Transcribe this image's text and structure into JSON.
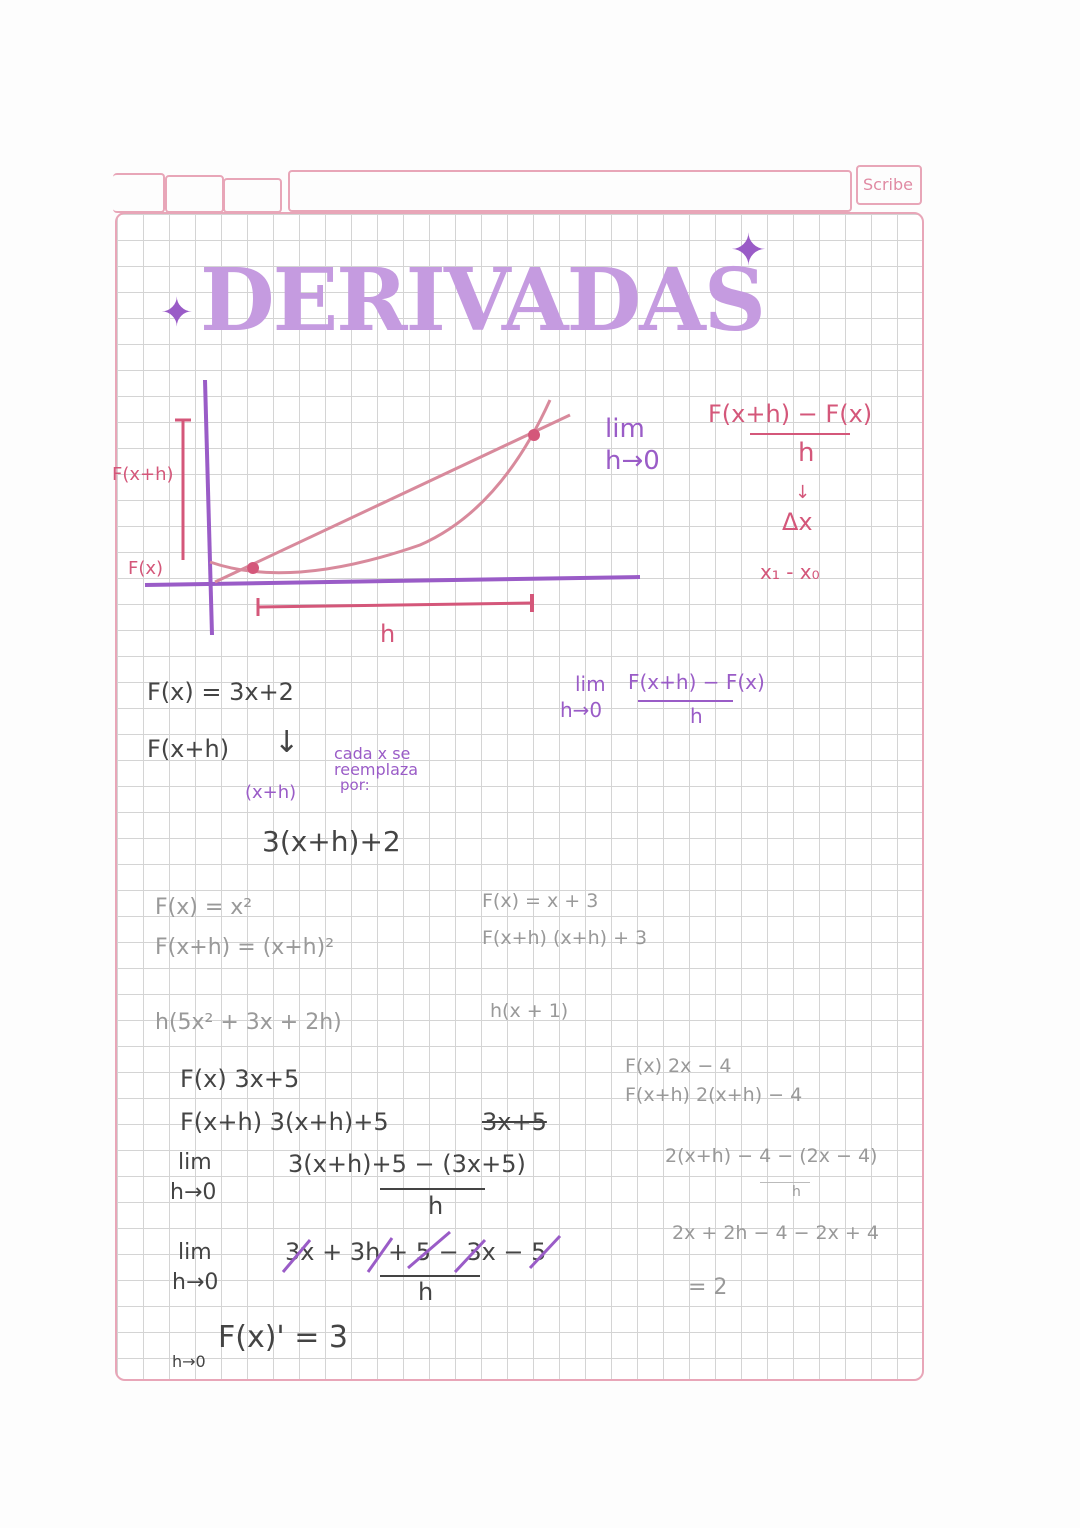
{
  "header": {
    "brand": "Scribe"
  },
  "title": "DERIVADAS",
  "graph": {
    "label_fxh": "F(x+h)",
    "label_fx": "F(x)",
    "label_h": "h"
  },
  "definition": {
    "lim": "lim",
    "h_to_0": "h→0",
    "numerator": "F(x+h) − F(x)",
    "denominator": "h",
    "delta": "Δx",
    "difference": "x₁ - x₀"
  },
  "example1": {
    "f": "F(x) = 3x+2",
    "fxh": "F(x+h)",
    "note_line1": "cada  x  se",
    "note_line2": "reemplaza",
    "note_line3": "por:",
    "xh": "(x+h)",
    "result": "3(x+h)+2"
  },
  "definition2": {
    "lim": "lim",
    "h_to_0": "h→0",
    "numerator": "F(x+h) − F(x)",
    "denominator": "h"
  },
  "example2": {
    "f": "F(x) = x²",
    "fxh": "F(x+h) = (x+h)²",
    "work": "h(5x² + 3x + 2h)"
  },
  "example3": {
    "f": "F(x) = x + 3",
    "fxh": "F(x+h)  (x+h) + 3",
    "work": "h(x + 1)"
  },
  "example4": {
    "f": "F(x) 3x+5",
    "fxh": "F(x+h)  3(x+h)+5",
    "scribble": "3x+5",
    "lim1": "lim",
    "h1": "h→0",
    "num1": "3(x+h)+5 − (3x+5)",
    "den1": "h",
    "lim2": "lim",
    "h2": "h→0",
    "num2": "3x + 3h + 5 − 3x − 5",
    "den2": "h",
    "result": "F(x)' = 3",
    "result_h": "h→0"
  },
  "example5": {
    "f": "F(x)  2x − 4",
    "fxh": "F(x+h)  2(x+h) − 4",
    "num": "2(x+h) − 4 − (2x − 4)",
    "den": "h",
    "expand": "2x + 2h − 4 − 2x + 4",
    "result": "= 2"
  },
  "colors": {
    "pink": "#d4577a",
    "purple": "#9a5cc7",
    "title": "#c59be0",
    "border": "#e8a6b8"
  }
}
